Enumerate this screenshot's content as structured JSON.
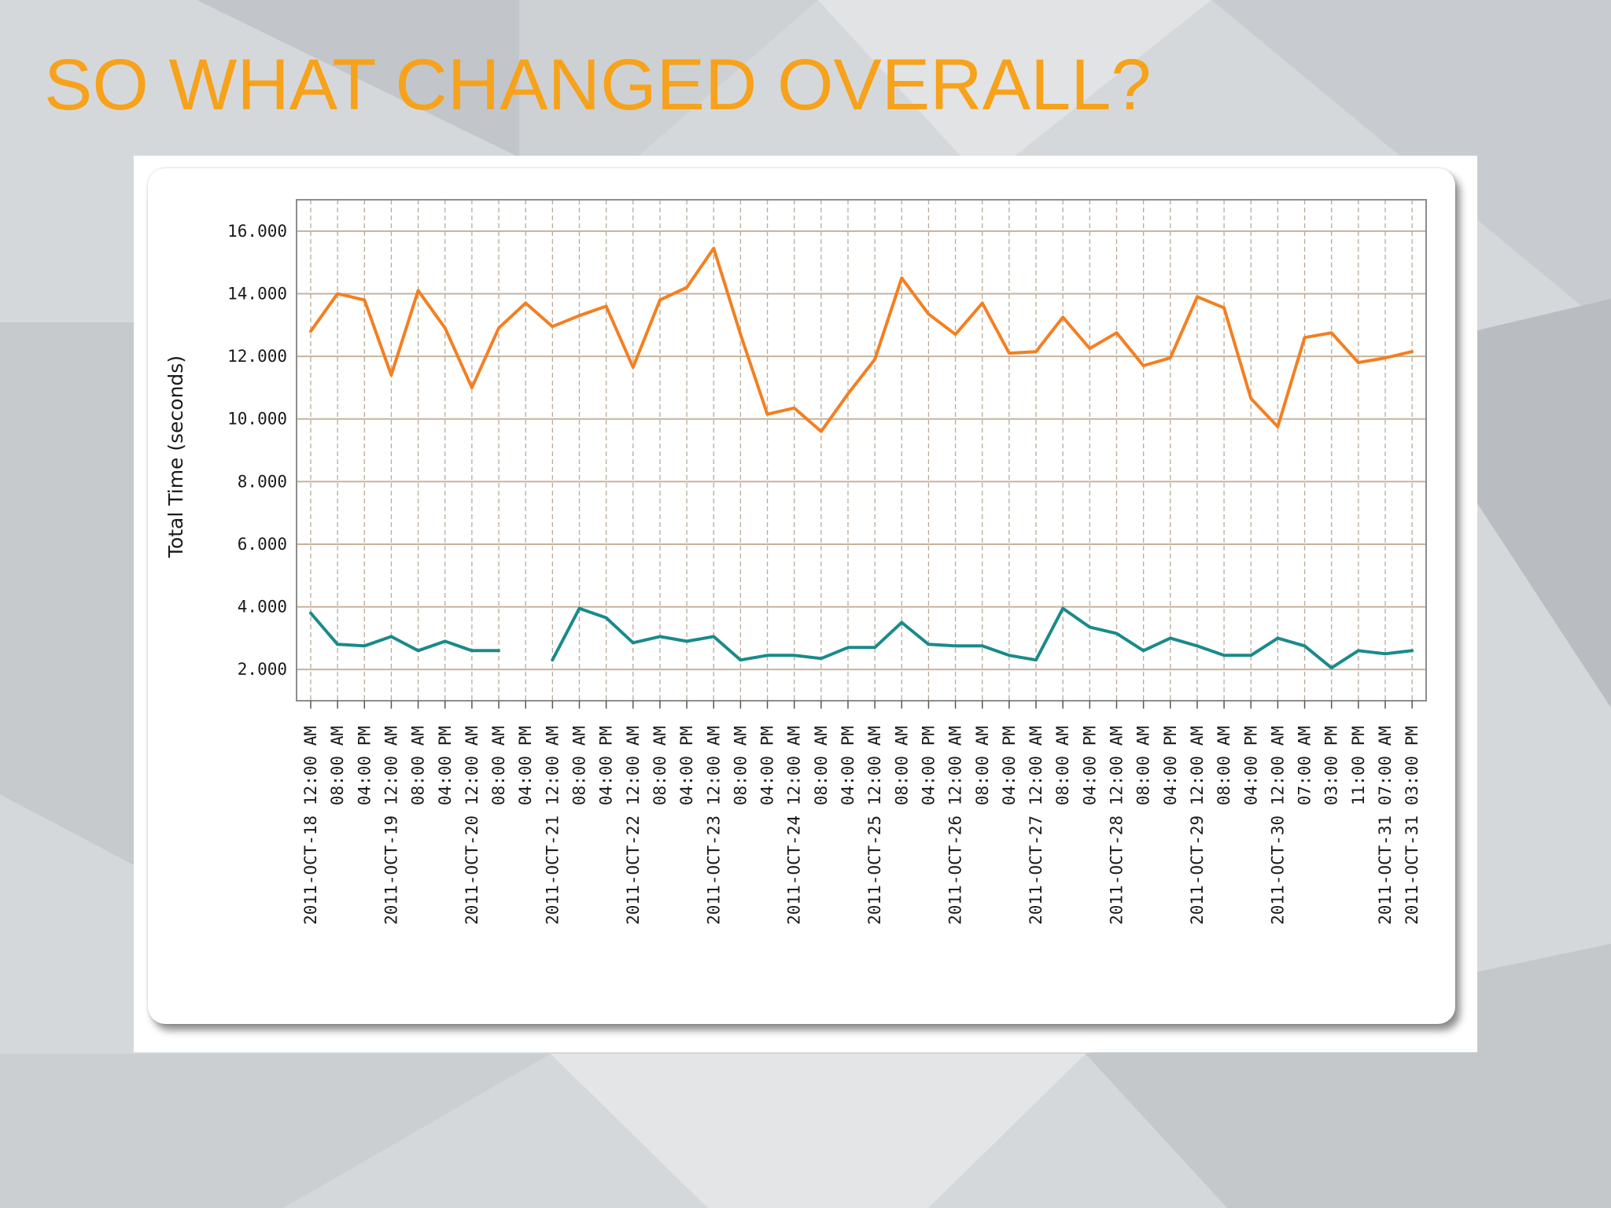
{
  "slide": {
    "title": "SO WHAT CHANGED OVERALL?",
    "title_color": "#f7a21b",
    "background_color": "#d5d8db"
  },
  "chart_data": {
    "type": "line",
    "title": "",
    "xlabel": "",
    "ylabel": "Total Time (seconds)",
    "ylim": [
      1000,
      17000
    ],
    "yticks": [
      2000,
      4000,
      6000,
      8000,
      10000,
      12000,
      14000,
      16000
    ],
    "ytick_labels": [
      "2.000",
      "4.000",
      "6.000",
      "8.000",
      "10.000",
      "12.000",
      "14.000",
      "16.000"
    ],
    "grid": true,
    "x": [
      "2011-OCT-18 12:00 AM",
      "08:00 AM",
      "04:00 PM",
      "2011-OCT-19 12:00 AM",
      "08:00 AM",
      "04:00 PM",
      "2011-OCT-20 12:00 AM",
      "08:00 AM",
      "04:00 PM",
      "2011-OCT-21 12:00 AM",
      "08:00 AM",
      "04:00 PM",
      "2011-OCT-22 12:00 AM",
      "08:00 AM",
      "04:00 PM",
      "2011-OCT-23 12:00 AM",
      "08:00 AM",
      "04:00 PM",
      "2011-OCT-24 12:00 AM",
      "08:00 AM",
      "04:00 PM",
      "2011-OCT-25 12:00 AM",
      "08:00 AM",
      "04:00 PM",
      "2011-OCT-26 12:00 AM",
      "08:00 AM",
      "04:00 PM",
      "2011-OCT-27 12:00 AM",
      "08:00 AM",
      "04:00 PM",
      "2011-OCT-28 12:00 AM",
      "08:00 AM",
      "04:00 PM",
      "2011-OCT-29 12:00 AM",
      "08:00 AM",
      "04:00 PM",
      "2011-OCT-30 12:00 AM",
      "07:00 AM",
      "03:00 PM",
      "11:00 PM",
      "2011-OCT-31 07:00 AM",
      "2011-OCT-31 03:00 PM"
    ],
    "series": [
      {
        "color": "#f47f20",
        "values": [
          12800,
          14000,
          13800,
          11400,
          14100,
          12900,
          11000,
          12900,
          13700,
          12950,
          13300,
          13600,
          11650,
          13800,
          14200,
          15450,
          12700,
          10150,
          10350,
          9600,
          10800,
          11900,
          14500,
          13350,
          12700,
          13700,
          12100,
          12150,
          13250,
          12250,
          12750,
          11700,
          11950,
          13900,
          13550,
          10650,
          9750,
          12600,
          12750,
          11800,
          11950,
          12150
        ]
      },
      {
        "color": "#1a8a8a",
        "values": [
          3800,
          2800,
          2750,
          3050,
          2600,
          2900,
          2600,
          2600,
          null,
          2300,
          3950,
          3650,
          2850,
          3050,
          2900,
          3050,
          2300,
          2450,
          2450,
          2350,
          2700,
          2700,
          3500,
          2800,
          2750,
          2750,
          2450,
          2300,
          3950,
          3350,
          3150,
          2600,
          3000,
          2750,
          2450,
          2450,
          3000,
          2750,
          2050,
          2600,
          2500,
          2600
        ]
      }
    ]
  }
}
